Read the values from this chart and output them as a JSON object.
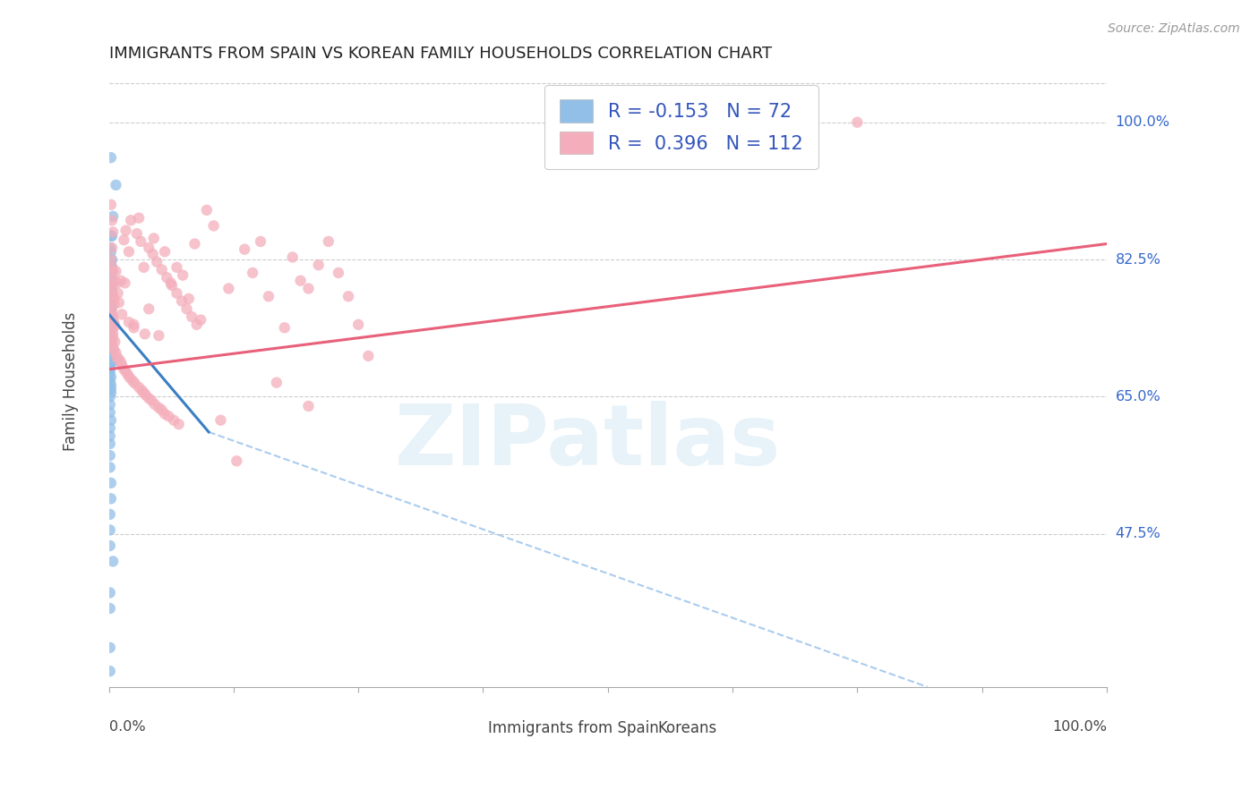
{
  "title": "IMMIGRANTS FROM SPAIN VS KOREAN FAMILY HOUSEHOLDS CORRELATION CHART",
  "source": "Source: ZipAtlas.com",
  "ylabel": "Family Households",
  "legend_label1": "Immigrants from Spain",
  "legend_label2": "Koreans",
  "r1": -0.153,
  "n1": 72,
  "r2": 0.396,
  "n2": 112,
  "ytick_labels": [
    "100.0%",
    "82.5%",
    "65.0%",
    "47.5%"
  ],
  "ytick_values": [
    1.0,
    0.825,
    0.65,
    0.475
  ],
  "xtick_labels_bottom": [
    "0.0%",
    "100.0%"
  ],
  "xmin": 0.0,
  "xmax": 1.0,
  "ymin": 0.28,
  "ymax": 1.06,
  "color_blue": "#92BFE8",
  "color_pink": "#F4AEBB",
  "color_blue_line": "#3A7EC4",
  "color_pink_line": "#E8607A",
  "color_dashed": "#AACCEE",
  "color_grid": "#CCCCCC",
  "watermark_text": "ZIPatlas",
  "watermark_color": "#D5E8F5",
  "blue_x": [
    0.002,
    0.007,
    0.004,
    0.002,
    0.003,
    0.001,
    0.002,
    0.003,
    0.002,
    0.001,
    0.002,
    0.003,
    0.003,
    0.003,
    0.003,
    0.003,
    0.003,
    0.003,
    0.002,
    0.001,
    0.002,
    0.001,
    0.002,
    0.002,
    0.002,
    0.001,
    0.002,
    0.003,
    0.002,
    0.001,
    0.002,
    0.001,
    0.002,
    0.002,
    0.001,
    0.001,
    0.001,
    0.002,
    0.001,
    0.001,
    0.004,
    0.002,
    0.001,
    0.003,
    0.002,
    0.001,
    0.001,
    0.001,
    0.002,
    0.001,
    0.002,
    0.002,
    0.002,
    0.001,
    0.001,
    0.001,
    0.002,
    0.001,
    0.001,
    0.001,
    0.001,
    0.001,
    0.002,
    0.002,
    0.001,
    0.001,
    0.001,
    0.004,
    0.001,
    0.001,
    0.001,
    0.001
  ],
  "blue_y": [
    0.955,
    0.92,
    0.88,
    0.855,
    0.855,
    0.84,
    0.835,
    0.825,
    0.82,
    0.82,
    0.815,
    0.815,
    0.81,
    0.8,
    0.8,
    0.795,
    0.795,
    0.785,
    0.785,
    0.78,
    0.775,
    0.775,
    0.772,
    0.77,
    0.765,
    0.765,
    0.76,
    0.755,
    0.75,
    0.748,
    0.745,
    0.742,
    0.74,
    0.736,
    0.732,
    0.73,
    0.725,
    0.722,
    0.718,
    0.715,
    0.71,
    0.705,
    0.7,
    0.695,
    0.692,
    0.688,
    0.685,
    0.68,
    0.675,
    0.67,
    0.665,
    0.66,
    0.655,
    0.65,
    0.64,
    0.63,
    0.62,
    0.61,
    0.6,
    0.59,
    0.575,
    0.56,
    0.54,
    0.52,
    0.5,
    0.48,
    0.46,
    0.44,
    0.4,
    0.38,
    0.33,
    0.3
  ],
  "pink_x": [
    0.002,
    0.003,
    0.004,
    0.003,
    0.002,
    0.003,
    0.004,
    0.003,
    0.004,
    0.002,
    0.003,
    0.004,
    0.005,
    0.005,
    0.003,
    0.003,
    0.004,
    0.005,
    0.006,
    0.003,
    0.004,
    0.004,
    0.006,
    0.003,
    0.003,
    0.005,
    0.007,
    0.008,
    0.01,
    0.012,
    0.013,
    0.015,
    0.017,
    0.019,
    0.021,
    0.024,
    0.026,
    0.03,
    0.033,
    0.035,
    0.037,
    0.04,
    0.043,
    0.046,
    0.05,
    0.053,
    0.056,
    0.06,
    0.065,
    0.07,
    0.007,
    0.008,
    0.009,
    0.01,
    0.012,
    0.013,
    0.015,
    0.017,
    0.02,
    0.022,
    0.025,
    0.028,
    0.032,
    0.036,
    0.04,
    0.044,
    0.048,
    0.053,
    0.058,
    0.063,
    0.068,
    0.073,
    0.078,
    0.083,
    0.088,
    0.016,
    0.02,
    0.025,
    0.03,
    0.035,
    0.04,
    0.045,
    0.05,
    0.056,
    0.062,
    0.068,
    0.074,
    0.08,
    0.086,
    0.092,
    0.098,
    0.105,
    0.112,
    0.12,
    0.128,
    0.136,
    0.144,
    0.152,
    0.16,
    0.168,
    0.176,
    0.184,
    0.192,
    0.2,
    0.21,
    0.22,
    0.23,
    0.24,
    0.25,
    0.26,
    0.75,
    0.2
  ],
  "pink_y": [
    0.895,
    0.875,
    0.86,
    0.84,
    0.825,
    0.815,
    0.81,
    0.8,
    0.795,
    0.79,
    0.782,
    0.778,
    0.775,
    0.768,
    0.762,
    0.755,
    0.75,
    0.745,
    0.74,
    0.735,
    0.73,
    0.725,
    0.72,
    0.718,
    0.715,
    0.71,
    0.706,
    0.7,
    0.698,
    0.694,
    0.69,
    0.685,
    0.682,
    0.678,
    0.674,
    0.67,
    0.667,
    0.662,
    0.658,
    0.655,
    0.652,
    0.648,
    0.645,
    0.64,
    0.636,
    0.633,
    0.628,
    0.625,
    0.62,
    0.615,
    0.81,
    0.795,
    0.782,
    0.77,
    0.798,
    0.755,
    0.85,
    0.862,
    0.745,
    0.875,
    0.738,
    0.858,
    0.848,
    0.73,
    0.84,
    0.832,
    0.822,
    0.812,
    0.802,
    0.792,
    0.782,
    0.772,
    0.762,
    0.752,
    0.742,
    0.795,
    0.835,
    0.742,
    0.878,
    0.815,
    0.762,
    0.852,
    0.728,
    0.835,
    0.795,
    0.815,
    0.805,
    0.775,
    0.845,
    0.748,
    0.888,
    0.868,
    0.62,
    0.788,
    0.568,
    0.838,
    0.808,
    0.848,
    0.778,
    0.668,
    0.738,
    0.828,
    0.798,
    0.638,
    0.818,
    0.848,
    0.808,
    0.778,
    0.742,
    0.702,
    1.0,
    0.788
  ],
  "blue_line_x0": 0.0,
  "blue_line_x1": 0.1,
  "blue_line_y0": 0.755,
  "blue_line_y1": 0.605,
  "dash_line_x0": 0.1,
  "dash_line_x1": 0.82,
  "dash_line_y0": 0.605,
  "dash_line_y1": 0.28,
  "pink_line_x0": 0.0,
  "pink_line_x1": 1.0,
  "pink_line_y0": 0.685,
  "pink_line_y1": 0.845
}
